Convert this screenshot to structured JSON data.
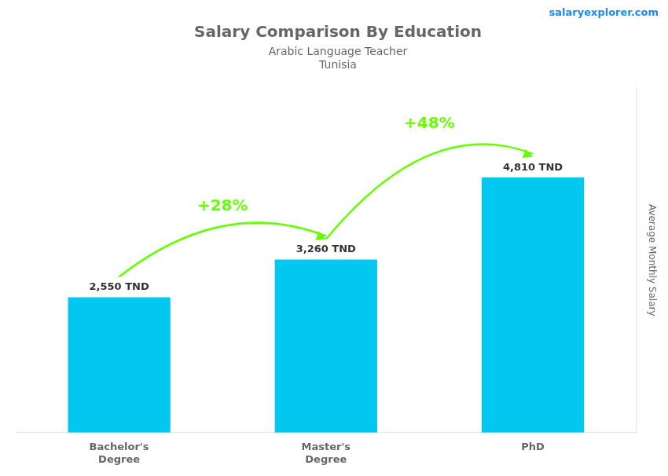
{
  "chart_data": {
    "type": "bar",
    "title": "Salary Comparison By Education",
    "subtitle": [
      "Arabic Language Teacher",
      "Tunisia"
    ],
    "y_label": "Average Monthly Salary",
    "categories": [
      "Bachelor's\nDegree",
      "Master's\nDegree",
      "PhD"
    ],
    "values": [
      2550,
      3260,
      4810
    ],
    "value_labels": [
      "2,550 TND",
      "3,260 TND",
      "4,810 TND"
    ],
    "data_labels": true,
    "color": "#00c8f0",
    "ylim": [
      0,
      6500
    ],
    "tick_labels": "x",
    "grid": false,
    "annotations": [
      {
        "text": "+28%",
        "between": [
          "Bachelor's\nDegree",
          "Master's\nDegree"
        ],
        "color": "#66ff00"
      },
      {
        "text": "+48%",
        "between": [
          "Master's\nDegree",
          "PhD"
        ],
        "color": "#66ff00"
      },
      {
        "text": "salaryexplorer.com"
      }
    ]
  }
}
